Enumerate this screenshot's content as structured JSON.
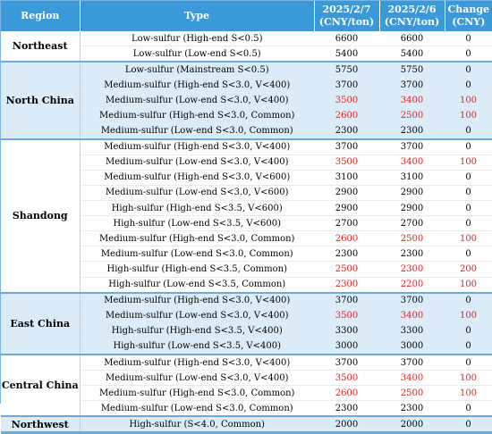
{
  "header": {
    "region": "Region",
    "type": "Type",
    "date1": [
      "2025/2/7",
      "(CNY/ton)"
    ],
    "date2": [
      "2025/2/6",
      "(CNY/ton)"
    ],
    "change": [
      "Change",
      "(CNY)"
    ]
  },
  "colors": {
    "header_bg": "#3a9ad9",
    "band": "#dcebf8",
    "increase": "#e8201c"
  },
  "groups": [
    {
      "region": "Northeast",
      "rows": [
        {
          "type": "Low-sulfur (High-end S<0.5)",
          "d1": "6600",
          "d2": "6600",
          "change": "0",
          "up": false
        },
        {
          "type": "Low-sulfur (Low-end S<0.5)",
          "d1": "5400",
          "d2": "5400",
          "change": "0",
          "up": false
        }
      ]
    },
    {
      "region": "North China",
      "rows": [
        {
          "type": "Low-sulfur (Mainstream S<0.5)",
          "d1": "5750",
          "d2": "5750",
          "change": "0",
          "up": false
        },
        {
          "type": "Medium-sulfur (High-end S<3.0, V<400)",
          "d1": "3700",
          "d2": "3700",
          "change": "0",
          "up": false
        },
        {
          "type": "Medium-sulfur (Low-end S<3.0, V<400)",
          "d1": "3500",
          "d2": "3400",
          "change": "100",
          "up": true
        },
        {
          "type": "Medium-sulfur (High-end S<3.0, Common)",
          "d1": "2600",
          "d2": "2500",
          "change": "100",
          "up": true
        },
        {
          "type": "Medium-sulfur (Low-end S<3.0, Common)",
          "d1": "2300",
          "d2": "2300",
          "change": "0",
          "up": false
        }
      ]
    },
    {
      "region": "Shandong",
      "rows": [
        {
          "type": "Medium-sulfur (High-end S<3.0, V<400)",
          "d1": "3700",
          "d2": "3700",
          "change": "0",
          "up": false
        },
        {
          "type": "Medium-sulfur (Low-end S<3.0, V<400)",
          "d1": "3500",
          "d2": "3400",
          "change": "100",
          "up": true
        },
        {
          "type": "Medium-sulfur (High-end S<3.0, V<600)",
          "d1": "3100",
          "d2": "3100",
          "change": "0",
          "up": false
        },
        {
          "type": "Medium-sulfur (Low-end S<3.0, V<600)",
          "d1": "2900",
          "d2": "2900",
          "change": "0",
          "up": false
        },
        {
          "type": "High-sulfur (High-end S<3.5, V<600)",
          "d1": "2900",
          "d2": "2900",
          "change": "0",
          "up": false
        },
        {
          "type": "High-sulfur (Low-end S<3.5, V<600)",
          "d1": "2700",
          "d2": "2700",
          "change": "0",
          "up": false
        },
        {
          "type": "Medium-sulfur (High-end S<3.0, Common)",
          "d1": "2600",
          "d2": "2500",
          "change": "100",
          "up": true
        },
        {
          "type": "Medium-sulfur (Low-end S<3.0, Common)",
          "d1": "2300",
          "d2": "2300",
          "change": "0",
          "up": false
        },
        {
          "type": "High-sulfur (High-end S<3.5, Common)",
          "d1": "2500",
          "d2": "2300",
          "change": "200",
          "up": true
        },
        {
          "type": "High-sulfur (Low-end S<3.5, Common)",
          "d1": "2300",
          "d2": "2200",
          "change": "100",
          "up": true
        }
      ]
    },
    {
      "region": "East China",
      "rows": [
        {
          "type": "Medium-sulfur (High-end S<3.0, V<400)",
          "d1": "3700",
          "d2": "3700",
          "change": "0",
          "up": false
        },
        {
          "type": "Medium-sulfur (Low-end S<3.0, V<400)",
          "d1": "3500",
          "d2": "3400",
          "change": "100",
          "up": true
        },
        {
          "type": "High-sulfur (High-end S<3.5, V<400)",
          "d1": "3300",
          "d2": "3300",
          "change": "0",
          "up": false
        },
        {
          "type": "High-sulfur (Low-end S<3.5, V<400)",
          "d1": "3000",
          "d2": "3000",
          "change": "0",
          "up": false
        }
      ]
    },
    {
      "region": "Central China",
      "rows": [
        {
          "type": "Medium-sulfur (High-end S<3.0, V<400)",
          "d1": "3700",
          "d2": "3700",
          "change": "0",
          "up": false
        },
        {
          "type": "Medium-sulfur (Low-end S<3.0, V<400)",
          "d1": "3500",
          "d2": "3400",
          "change": "100",
          "up": true
        },
        {
          "type": "Medium-sulfur (High-end S<3.0, Common)",
          "d1": "2600",
          "d2": "2500",
          "change": "100",
          "up": true
        },
        {
          "type": "Medium-sulfur (Low-end S<3.0, Common)",
          "d1": "2300",
          "d2": "2300",
          "change": "0",
          "up": false
        }
      ]
    },
    {
      "region": "Northwest",
      "rows": [
        {
          "type": "High-sulfur (S<4.0, Common)",
          "d1": "2000",
          "d2": "2000",
          "change": "0",
          "up": false
        }
      ]
    }
  ]
}
